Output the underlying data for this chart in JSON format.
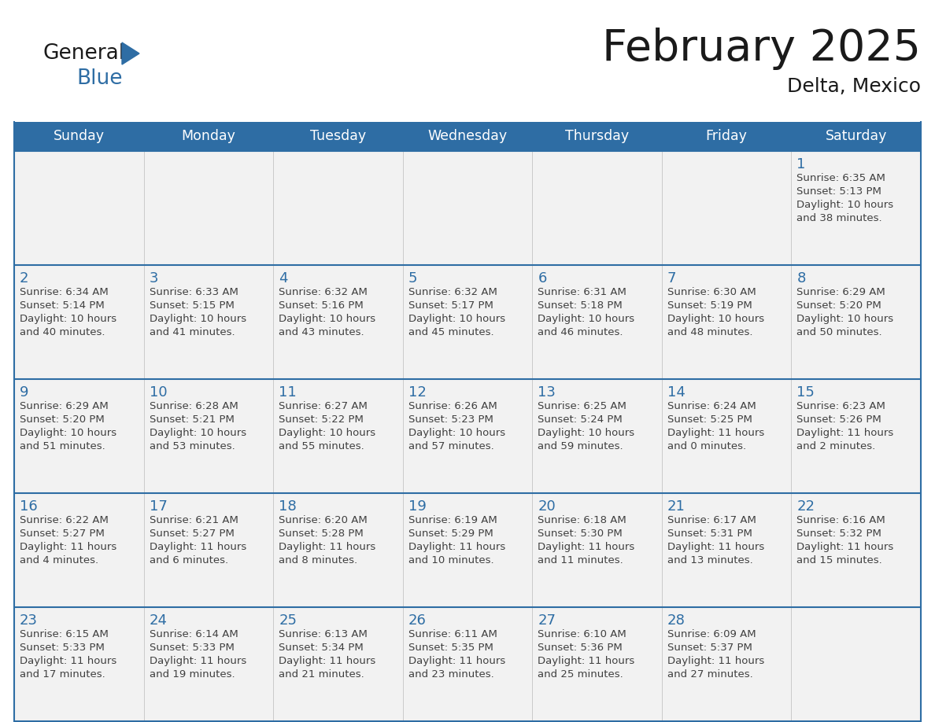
{
  "title": "February 2025",
  "subtitle": "Delta, Mexico",
  "header_bg": "#2E6DA4",
  "header_text_color": "#FFFFFF",
  "cell_bg": "#F2F2F2",
  "day_number_color": "#2E6DA4",
  "info_text_color": "#404040",
  "border_color": "#2E6DA4",
  "days_of_week": [
    "Sunday",
    "Monday",
    "Tuesday",
    "Wednesday",
    "Thursday",
    "Friday",
    "Saturday"
  ],
  "calendar_data": [
    [
      null,
      null,
      null,
      null,
      null,
      null,
      {
        "day": "1",
        "sunrise": "6:35 AM",
        "sunset": "5:13 PM",
        "daylight_h": "10 hours",
        "daylight_m": "and 38 minutes."
      }
    ],
    [
      {
        "day": "2",
        "sunrise": "6:34 AM",
        "sunset": "5:14 PM",
        "daylight_h": "10 hours",
        "daylight_m": "and 40 minutes."
      },
      {
        "day": "3",
        "sunrise": "6:33 AM",
        "sunset": "5:15 PM",
        "daylight_h": "10 hours",
        "daylight_m": "and 41 minutes."
      },
      {
        "day": "4",
        "sunrise": "6:32 AM",
        "sunset": "5:16 PM",
        "daylight_h": "10 hours",
        "daylight_m": "and 43 minutes."
      },
      {
        "day": "5",
        "sunrise": "6:32 AM",
        "sunset": "5:17 PM",
        "daylight_h": "10 hours",
        "daylight_m": "and 45 minutes."
      },
      {
        "day": "6",
        "sunrise": "6:31 AM",
        "sunset": "5:18 PM",
        "daylight_h": "10 hours",
        "daylight_m": "and 46 minutes."
      },
      {
        "day": "7",
        "sunrise": "6:30 AM",
        "sunset": "5:19 PM",
        "daylight_h": "10 hours",
        "daylight_m": "and 48 minutes."
      },
      {
        "day": "8",
        "sunrise": "6:29 AM",
        "sunset": "5:20 PM",
        "daylight_h": "10 hours",
        "daylight_m": "and 50 minutes."
      }
    ],
    [
      {
        "day": "9",
        "sunrise": "6:29 AM",
        "sunset": "5:20 PM",
        "daylight_h": "10 hours",
        "daylight_m": "and 51 minutes."
      },
      {
        "day": "10",
        "sunrise": "6:28 AM",
        "sunset": "5:21 PM",
        "daylight_h": "10 hours",
        "daylight_m": "and 53 minutes."
      },
      {
        "day": "11",
        "sunrise": "6:27 AM",
        "sunset": "5:22 PM",
        "daylight_h": "10 hours",
        "daylight_m": "and 55 minutes."
      },
      {
        "day": "12",
        "sunrise": "6:26 AM",
        "sunset": "5:23 PM",
        "daylight_h": "10 hours",
        "daylight_m": "and 57 minutes."
      },
      {
        "day": "13",
        "sunrise": "6:25 AM",
        "sunset": "5:24 PM",
        "daylight_h": "10 hours",
        "daylight_m": "and 59 minutes."
      },
      {
        "day": "14",
        "sunrise": "6:24 AM",
        "sunset": "5:25 PM",
        "daylight_h": "11 hours",
        "daylight_m": "and 0 minutes."
      },
      {
        "day": "15",
        "sunrise": "6:23 AM",
        "sunset": "5:26 PM",
        "daylight_h": "11 hours",
        "daylight_m": "and 2 minutes."
      }
    ],
    [
      {
        "day": "16",
        "sunrise": "6:22 AM",
        "sunset": "5:27 PM",
        "daylight_h": "11 hours",
        "daylight_m": "and 4 minutes."
      },
      {
        "day": "17",
        "sunrise": "6:21 AM",
        "sunset": "5:27 PM",
        "daylight_h": "11 hours",
        "daylight_m": "and 6 minutes."
      },
      {
        "day": "18",
        "sunrise": "6:20 AM",
        "sunset": "5:28 PM",
        "daylight_h": "11 hours",
        "daylight_m": "and 8 minutes."
      },
      {
        "day": "19",
        "sunrise": "6:19 AM",
        "sunset": "5:29 PM",
        "daylight_h": "11 hours",
        "daylight_m": "and 10 minutes."
      },
      {
        "day": "20",
        "sunrise": "6:18 AM",
        "sunset": "5:30 PM",
        "daylight_h": "11 hours",
        "daylight_m": "and 11 minutes."
      },
      {
        "day": "21",
        "sunrise": "6:17 AM",
        "sunset": "5:31 PM",
        "daylight_h": "11 hours",
        "daylight_m": "and 13 minutes."
      },
      {
        "day": "22",
        "sunrise": "6:16 AM",
        "sunset": "5:32 PM",
        "daylight_h": "11 hours",
        "daylight_m": "and 15 minutes."
      }
    ],
    [
      {
        "day": "23",
        "sunrise": "6:15 AM",
        "sunset": "5:33 PM",
        "daylight_h": "11 hours",
        "daylight_m": "and 17 minutes."
      },
      {
        "day": "24",
        "sunrise": "6:14 AM",
        "sunset": "5:33 PM",
        "daylight_h": "11 hours",
        "daylight_m": "and 19 minutes."
      },
      {
        "day": "25",
        "sunrise": "6:13 AM",
        "sunset": "5:34 PM",
        "daylight_h": "11 hours",
        "daylight_m": "and 21 minutes."
      },
      {
        "day": "26",
        "sunrise": "6:11 AM",
        "sunset": "5:35 PM",
        "daylight_h": "11 hours",
        "daylight_m": "and 23 minutes."
      },
      {
        "day": "27",
        "sunrise": "6:10 AM",
        "sunset": "5:36 PM",
        "daylight_h": "11 hours",
        "daylight_m": "and 25 minutes."
      },
      {
        "day": "28",
        "sunrise": "6:09 AM",
        "sunset": "5:37 PM",
        "daylight_h": "11 hours",
        "daylight_m": "and 27 minutes."
      },
      null
    ]
  ]
}
